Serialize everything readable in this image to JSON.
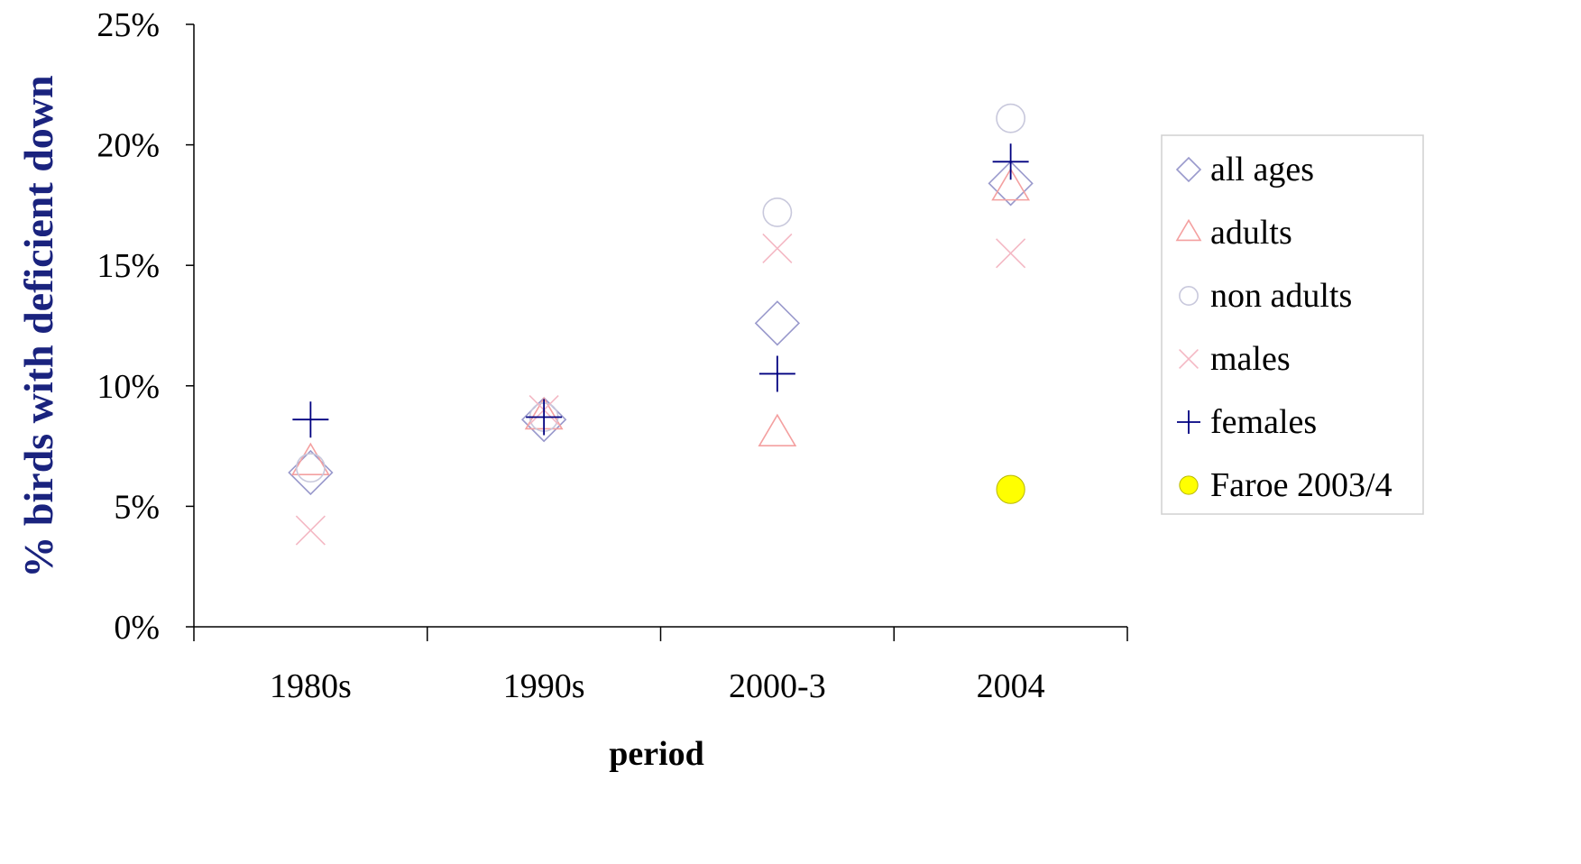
{
  "chart_data": {
    "type": "scatter",
    "title": "",
    "xlabel": "period",
    "ylabel": "% birds with deficient down",
    "categories": [
      "1980s",
      "1990s",
      "2000-3",
      "2004"
    ],
    "ylim": [
      0,
      0.25
    ],
    "yticks": [
      "0%",
      "5%",
      "10%",
      "15%",
      "20%",
      "25%"
    ],
    "grid": false,
    "legend_position": "right",
    "series": [
      {
        "name": "all ages",
        "marker": "diamond",
        "color": "#9999cc",
        "values": [
          0.064,
          0.086,
          0.126,
          0.184
        ]
      },
      {
        "name": "adults",
        "marker": "triangle",
        "color": "#f4a0a0",
        "values": [
          0.068,
          0.087,
          0.08,
          0.182
        ]
      },
      {
        "name": "non adults",
        "marker": "circle",
        "color": "#c8c8dc",
        "values": [
          0.066,
          0.087,
          0.172,
          0.211
        ]
      },
      {
        "name": "males",
        "marker": "x",
        "color": "#f4b8c4",
        "values": [
          0.04,
          0.09,
          0.157,
          0.155
        ]
      },
      {
        "name": "females",
        "marker": "plus",
        "color": "#000080",
        "values": [
          0.086,
          0.087,
          0.105,
          0.193
        ]
      },
      {
        "name": "Faroe 2003/4",
        "marker": "filled-circle",
        "color": "#ffff00",
        "values": [
          null,
          null,
          null,
          0.057
        ]
      }
    ]
  }
}
